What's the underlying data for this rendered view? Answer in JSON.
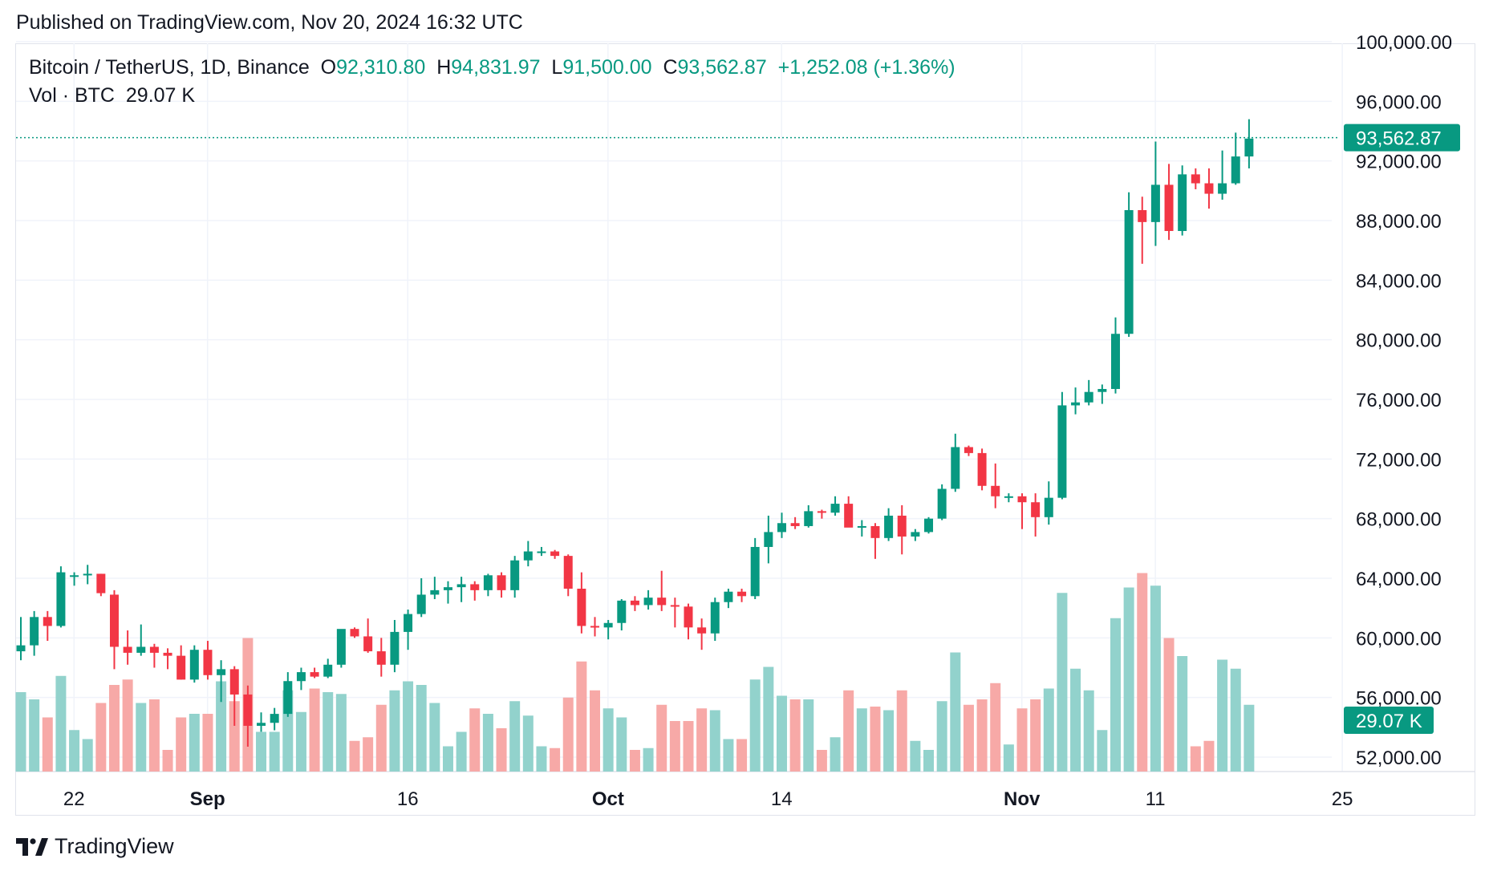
{
  "header": {
    "published": "Published on TradingView.com, Nov 20, 2024 16:32 UTC"
  },
  "legend": {
    "symbol": "Bitcoin / TetherUS, 1D, Binance",
    "open_label": "O",
    "open_value": "92,310.80",
    "high_label": "H",
    "high_value": "94,831.97",
    "low_label": "L",
    "low_value": "91,500.00",
    "close_label": "C",
    "close_value": "93,562.87",
    "change": "+1,252.08 (+1.36%)",
    "volume_label": "Vol · BTC",
    "volume_value": "29.07 K"
  },
  "footer": {
    "brand": "TradingView"
  },
  "colors": {
    "up": "#089981",
    "down": "#f23645",
    "vol_up": "#92d2cc",
    "vol_down": "#f7a9a7",
    "grid": "#f0f3fa",
    "text": "#131722"
  },
  "chart_data": {
    "type": "candlestick",
    "price_range": [
      52000,
      100000
    ],
    "price_ticks": [
      {
        "v": 100000,
        "label": "100,000.00"
      },
      {
        "v": 96000,
        "label": "96,000.00"
      },
      {
        "v": 92000,
        "label": "92,000.00"
      },
      {
        "v": 88000,
        "label": "88,000.00"
      },
      {
        "v": 84000,
        "label": "84,000.00"
      },
      {
        "v": 80000,
        "label": "80,000.00"
      },
      {
        "v": 76000,
        "label": "76,000.00"
      },
      {
        "v": 72000,
        "label": "72,000.00"
      },
      {
        "v": 68000,
        "label": "68,000.00"
      },
      {
        "v": 64000,
        "label": "64,000.00"
      },
      {
        "v": 60000,
        "label": "60,000.00"
      },
      {
        "v": 56000,
        "label": "56,000.00"
      },
      {
        "v": 52000,
        "label": "52,000.00"
      }
    ],
    "x_ticks": [
      {
        "i": 2,
        "label": "22",
        "bold": false
      },
      {
        "i": 12,
        "label": "Sep",
        "bold": true
      },
      {
        "i": 27,
        "label": "16",
        "bold": false
      },
      {
        "i": 42,
        "label": "Oct",
        "bold": true
      },
      {
        "i": 55,
        "label": "14",
        "bold": false
      },
      {
        "i": 73,
        "label": "Nov",
        "bold": true
      },
      {
        "i": 83,
        "label": "11",
        "bold": false
      },
      {
        "i": 97,
        "label": "25",
        "bold": false
      }
    ],
    "last_price": 93562.87,
    "last_price_label": "93,562.87",
    "last_volume_label": "29.07 K",
    "candles": [
      [
        59100,
        61400,
        58500,
        59500,
        44
      ],
      [
        59500,
        61800,
        58800,
        61400,
        40
      ],
      [
        61400,
        61800,
        59800,
        60800,
        30
      ],
      [
        60800,
        64800,
        60700,
        64400,
        53
      ],
      [
        64100,
        64400,
        63500,
        64200,
        23
      ],
      [
        64200,
        64900,
        63600,
        64300,
        18
      ],
      [
        64300,
        64300,
        62800,
        63000,
        38
      ],
      [
        62900,
        63200,
        57900,
        59400,
        48
      ],
      [
        59400,
        60500,
        58200,
        59000,
        51
      ],
      [
        59000,
        60900,
        58800,
        59400,
        38
      ],
      [
        59400,
        59600,
        58000,
        59000,
        40
      ],
      [
        59000,
        59300,
        57900,
        58800,
        12
      ],
      [
        58800,
        59500,
        57200,
        57200,
        30
      ],
      [
        57200,
        59500,
        57000,
        59200,
        32
      ],
      [
        59200,
        59800,
        57200,
        57500,
        32
      ],
      [
        57500,
        58500,
        55700,
        57900,
        50
      ],
      [
        57900,
        58100,
        54100,
        56200,
        39
      ],
      [
        56200,
        56800,
        52700,
        54100,
        74
      ],
      [
        54100,
        55000,
        53700,
        54300,
        22
      ],
      [
        54300,
        55300,
        53800,
        54900,
        22
      ],
      [
        54900,
        57700,
        54700,
        57100,
        45
      ],
      [
        57100,
        58000,
        56500,
        57700,
        33
      ],
      [
        57700,
        58000,
        57300,
        57400,
        46
      ],
      [
        57400,
        58600,
        57300,
        58200,
        44
      ],
      [
        58200,
        60500,
        58000,
        60600,
        43
      ],
      [
        60600,
        60700,
        60000,
        60100,
        17
      ],
      [
        60100,
        61300,
        59000,
        59100,
        19
      ],
      [
        59100,
        60000,
        57400,
        58200,
        37
      ],
      [
        58200,
        61200,
        57700,
        60400,
        45
      ],
      [
        60400,
        61900,
        59200,
        61600,
        50
      ],
      [
        61600,
        64000,
        61400,
        62900,
        48
      ],
      [
        62900,
        64100,
        62600,
        63200,
        38
      ],
      [
        63200,
        63800,
        62300,
        63400,
        14
      ],
      [
        63400,
        64100,
        62400,
        63600,
        22
      ],
      [
        63600,
        63800,
        62500,
        63200,
        35
      ],
      [
        63200,
        64300,
        62800,
        64200,
        32
      ],
      [
        64200,
        64400,
        62700,
        63200,
        24
      ],
      [
        63200,
        65500,
        62700,
        65200,
        39
      ],
      [
        65200,
        66500,
        64800,
        65800,
        31
      ],
      [
        65800,
        66100,
        65500,
        65800,
        14
      ],
      [
        65800,
        65900,
        65300,
        65500,
        13
      ],
      [
        65500,
        65600,
        62800,
        63300,
        41
      ],
      [
        63300,
        64400,
        60300,
        60800,
        61
      ],
      [
        60800,
        61400,
        60100,
        60700,
        45
      ],
      [
        60700,
        61200,
        59900,
        61000,
        35
      ],
      [
        61000,
        62600,
        60500,
        62500,
        30
      ],
      [
        62500,
        62800,
        61800,
        62200,
        12
      ],
      [
        62200,
        63200,
        61900,
        62700,
        13
      ],
      [
        62700,
        64500,
        61800,
        62200,
        37
      ],
      [
        62200,
        62700,
        60700,
        62100,
        28
      ],
      [
        62100,
        62300,
        59900,
        60700,
        28
      ],
      [
        60700,
        61300,
        59200,
        60300,
        35
      ],
      [
        60300,
        62700,
        59800,
        62400,
        34
      ],
      [
        62400,
        63300,
        62000,
        63100,
        18
      ],
      [
        63100,
        63300,
        62400,
        62800,
        18
      ],
      [
        62800,
        66700,
        62600,
        66100,
        51
      ],
      [
        66100,
        68200,
        65000,
        67100,
        58
      ],
      [
        67100,
        68400,
        66700,
        67700,
        42
      ],
      [
        67700,
        68100,
        67300,
        67500,
        40
      ],
      [
        67500,
        68900,
        67400,
        68500,
        40
      ],
      [
        68500,
        68600,
        68000,
        68400,
        12
      ],
      [
        68400,
        69500,
        68200,
        69000,
        19
      ],
      [
        69000,
        69500,
        67600,
        67400,
        45
      ],
      [
        67400,
        67900,
        66800,
        67500,
        35
      ],
      [
        67500,
        67700,
        65300,
        66700,
        36
      ],
      [
        66700,
        68700,
        66500,
        68200,
        34
      ],
      [
        68200,
        68900,
        65600,
        66800,
        45
      ],
      [
        66800,
        67300,
        66500,
        67100,
        17
      ],
      [
        67100,
        68100,
        67000,
        68000,
        12
      ],
      [
        68000,
        70300,
        67900,
        70000,
        39
      ],
      [
        70000,
        73700,
        69800,
        72800,
        66
      ],
      [
        72800,
        72900,
        72200,
        72400,
        37
      ],
      [
        72400,
        72700,
        69900,
        70200,
        40
      ],
      [
        70200,
        71700,
        68700,
        69500,
        49
      ],
      [
        69500,
        69700,
        69100,
        69500,
        15
      ],
      [
        69500,
        69700,
        67300,
        69100,
        35
      ],
      [
        69100,
        69700,
        66800,
        68100,
        40
      ],
      [
        68100,
        70500,
        67600,
        69400,
        46
      ],
      [
        69400,
        76500,
        69300,
        75600,
        99
      ],
      [
        75600,
        76800,
        75000,
        75800,
        57
      ],
      [
        75800,
        77300,
        75600,
        76500,
        45
      ],
      [
        76500,
        77000,
        75700,
        76700,
        23
      ],
      [
        76700,
        81500,
        76400,
        80400,
        85
      ],
      [
        80400,
        89900,
        80200,
        88700,
        102
      ],
      [
        88700,
        89600,
        85100,
        87900,
        110
      ],
      [
        87900,
        93300,
        86300,
        90400,
        103
      ],
      [
        90400,
        91800,
        86700,
        87300,
        74
      ],
      [
        87300,
        91700,
        87000,
        91100,
        64
      ],
      [
        91100,
        91500,
        90100,
        90500,
        14
      ],
      [
        90500,
        91500,
        88800,
        89800,
        17
      ],
      [
        89800,
        92700,
        89400,
        90500,
        62
      ],
      [
        90500,
        93900,
        90400,
        92300,
        57
      ],
      [
        92300,
        94800,
        91500,
        93500,
        37
      ]
    ]
  }
}
